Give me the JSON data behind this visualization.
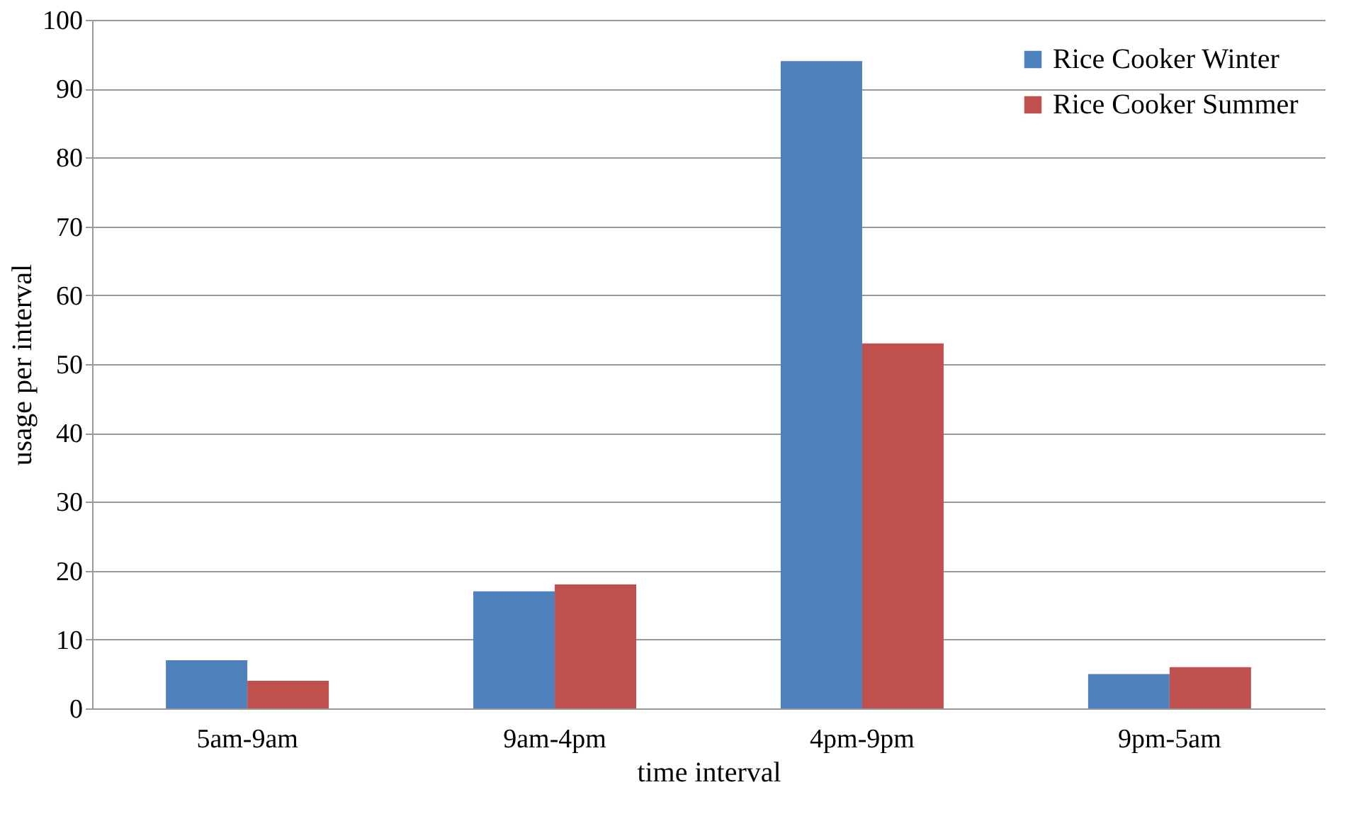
{
  "chart_data": {
    "type": "bar",
    "xlabel": "time interval",
    "ylabel": "usage per interval",
    "categories": [
      "5am-9am",
      "9am-4pm",
      "4pm-9pm",
      "9pm-5am"
    ],
    "series": [
      {
        "name": "Rice Cooker Winter",
        "color": "#4f81bd",
        "values": [
          7,
          17,
          94,
          5
        ]
      },
      {
        "name": "Rice Cooker Summer",
        "color": "#c0504d",
        "values": [
          4,
          18,
          53,
          6
        ]
      }
    ],
    "ylim": [
      0,
      100
    ],
    "yticks": [
      0,
      10,
      20,
      30,
      40,
      50,
      60,
      70,
      80,
      90,
      100
    ],
    "grid": "y",
    "legend": "top right"
  }
}
